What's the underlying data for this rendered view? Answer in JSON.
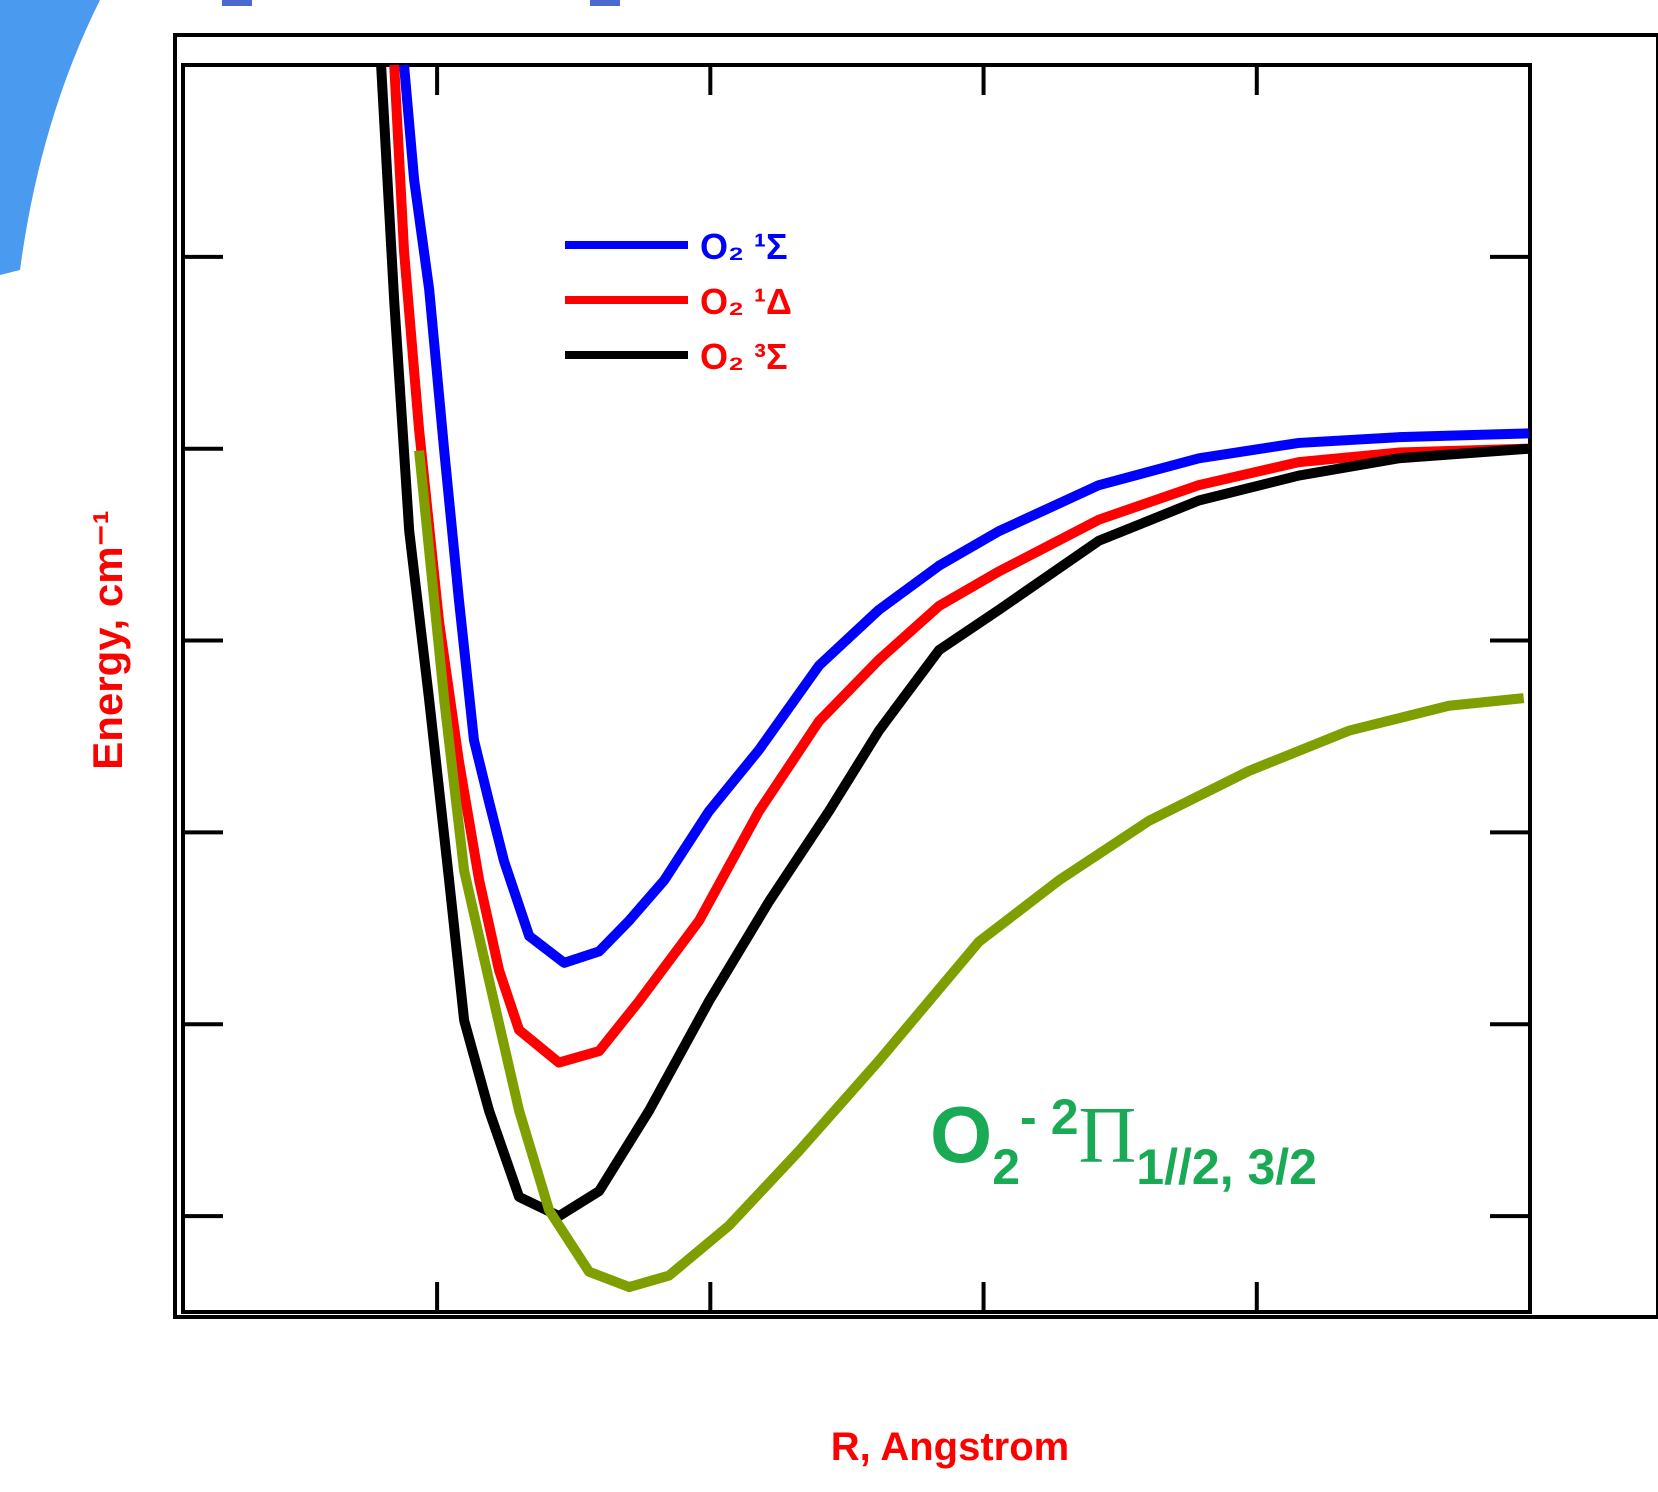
{
  "chart_data": {
    "type": "line",
    "xlabel": "R, Angstrom",
    "ylabel": "Energy, cm⁻¹",
    "xlim": [
      0.07,
      5
    ],
    "xticks": [
      1,
      2,
      3,
      4
    ],
    "ylim": [
      -0.5,
      6
    ],
    "yticks": [
      0,
      1,
      2,
      3,
      4,
      5,
      6
    ],
    "series": [
      {
        "name": "O₂ ¹Σ",
        "color": "#0000ff",
        "label_color": "#0000ff",
        "x": [
          0.879,
          0.916,
          0.971,
          1.026,
          1.08,
          1.135,
          1.19,
          1.245,
          1.337,
          1.465,
          1.593,
          1.703,
          1.831,
          1.995,
          2.178,
          2.398,
          2.617,
          2.837,
          3.056,
          3.422,
          3.788,
          4.154,
          4.52,
          4.996
        ],
        "values": [
          6.0,
          5.4,
          4.83,
          3.99,
          3.21,
          2.48,
          2.16,
          1.85,
          1.46,
          1.32,
          1.38,
          1.54,
          1.75,
          2.11,
          2.43,
          2.87,
          3.16,
          3.39,
          3.57,
          3.81,
          3.95,
          4.03,
          4.06,
          4.08
        ]
      },
      {
        "name": "O₂ ¹Δ",
        "color": "#ff0000",
        "label_color": "#ff0000",
        "x": [
          0.843,
          0.879,
          0.934,
          1.007,
          1.08,
          1.154,
          1.227,
          1.3,
          1.446,
          1.593,
          1.739,
          1.959,
          2.178,
          2.398,
          2.617,
          2.837,
          3.056,
          3.422,
          3.788,
          4.154,
          4.52,
          4.996
        ],
        "values": [
          6.0,
          5.03,
          4.1,
          3.1,
          2.37,
          1.75,
          1.28,
          0.97,
          0.8,
          0.86,
          1.12,
          1.54,
          2.11,
          2.58,
          2.9,
          3.18,
          3.36,
          3.63,
          3.81,
          3.93,
          3.98,
          4.0
        ]
      },
      {
        "name": "O₂ ³Σ",
        "color": "#000000",
        "label_color": "#ff0000",
        "x": [
          0.795,
          0.843,
          0.898,
          0.971,
          1.044,
          1.099,
          1.19,
          1.3,
          1.446,
          1.593,
          1.776,
          1.995,
          2.215,
          2.434,
          2.617,
          2.837,
          3.056,
          3.422,
          3.788,
          4.154,
          4.52,
          4.996
        ],
        "values": [
          6.0,
          4.77,
          3.57,
          2.69,
          1.75,
          1.02,
          0.55,
          0.1,
          0.0,
          0.13,
          0.55,
          1.12,
          1.64,
          2.11,
          2.53,
          2.95,
          3.16,
          3.52,
          3.73,
          3.86,
          3.95,
          4.0
        ]
      },
      {
        "color": "#7f9f00",
        "x": [
          0.934,
          1.026,
          1.099,
          1.19,
          1.3,
          1.41,
          1.556,
          1.703,
          1.849,
          2.068,
          2.325,
          2.617,
          2.983,
          3.276,
          3.605,
          3.971,
          4.337,
          4.703,
          4.977
        ],
        "values": [
          3.99,
          2.69,
          1.8,
          1.23,
          0.55,
          0.03,
          -0.29,
          -0.37,
          -0.31,
          -0.05,
          0.34,
          0.81,
          1.43,
          1.75,
          2.06,
          2.32,
          2.53,
          2.66,
          2.7
        ]
      }
    ],
    "annotation": {
      "base": "O",
      "sub": "2",
      "charge": "-",
      "sup": "2",
      "term": "Π",
      "term_sub": "1//2, 3/2",
      "color": "#1aaa55"
    }
  }
}
